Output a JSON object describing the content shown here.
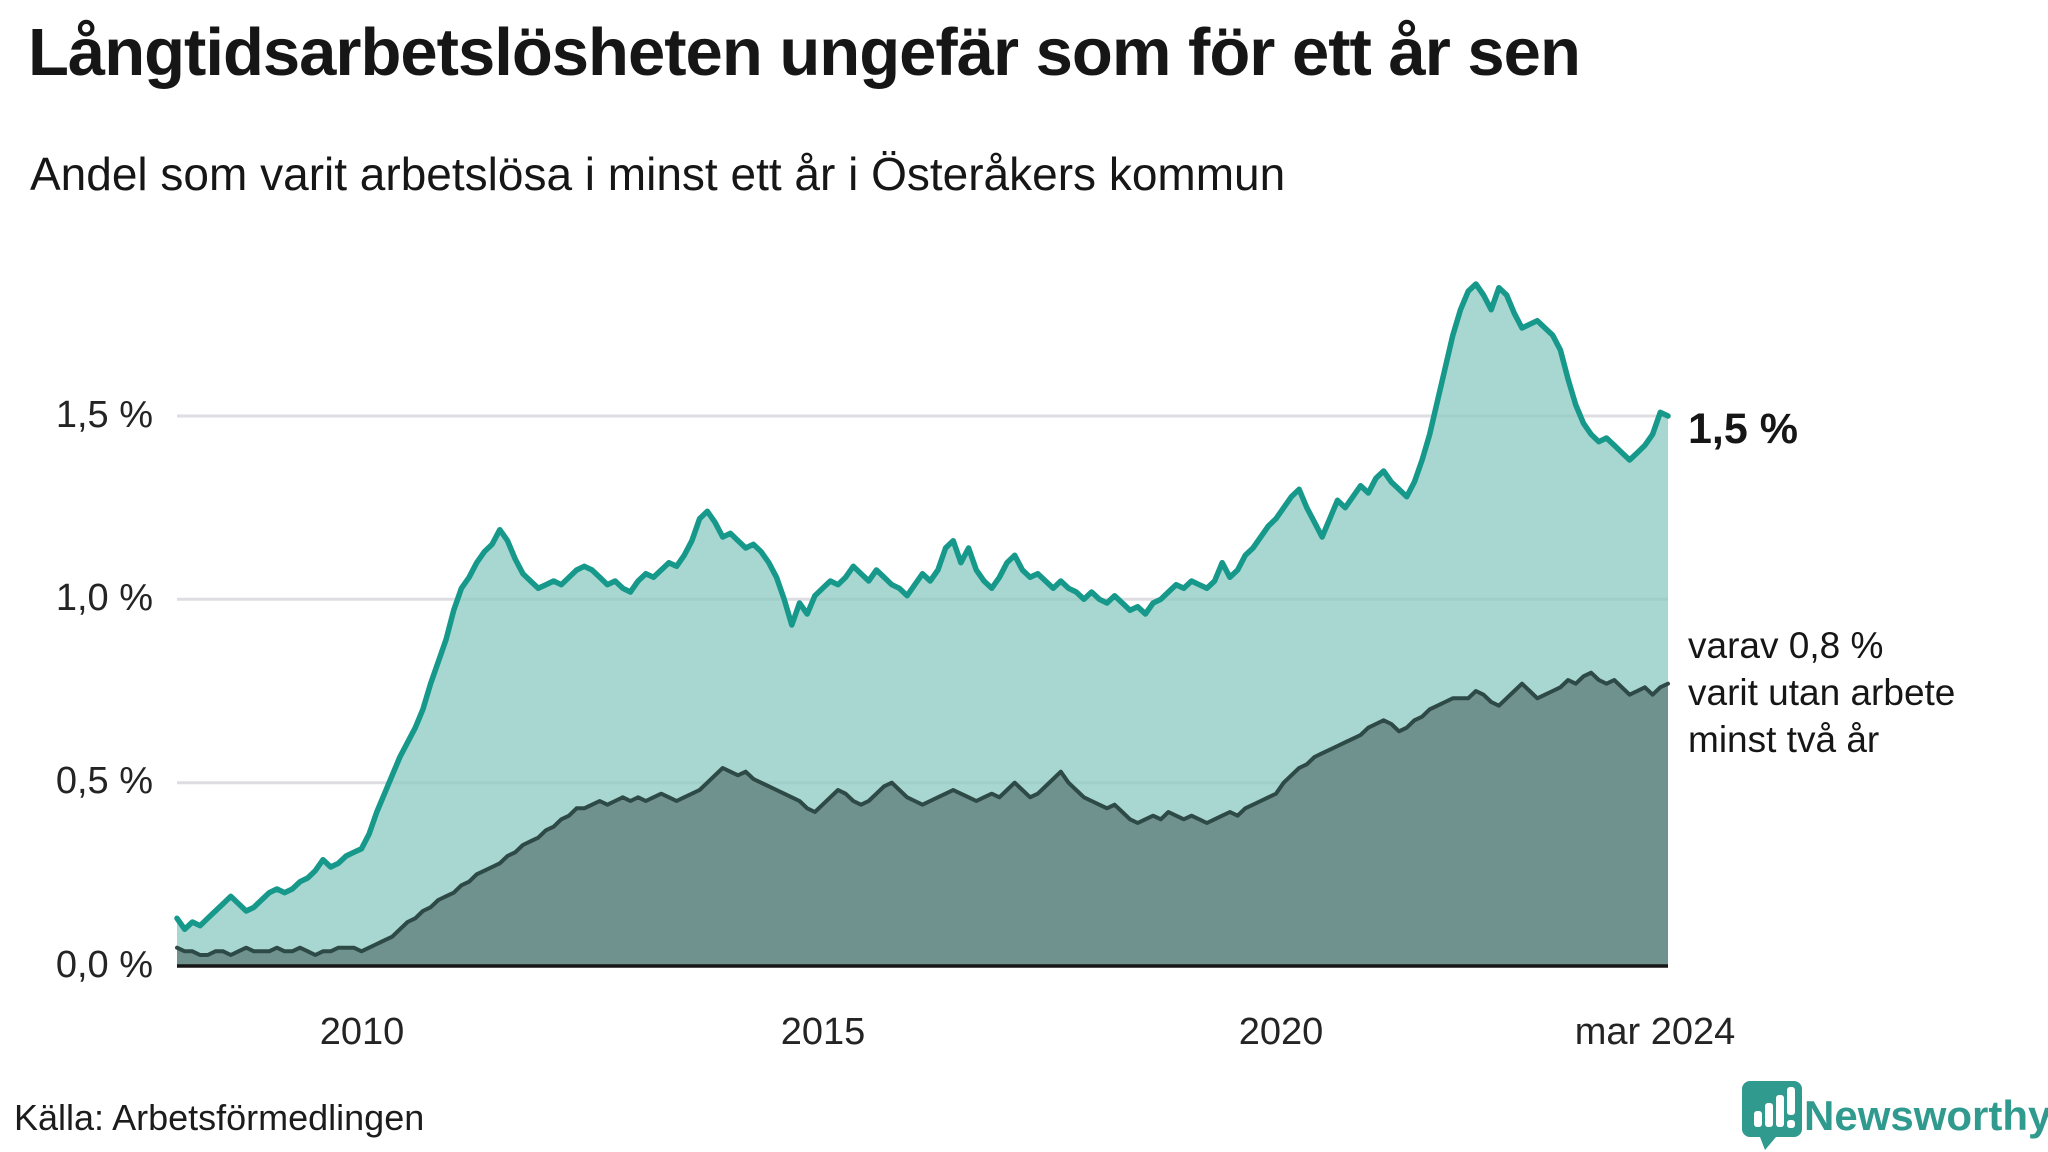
{
  "header": {
    "title": "Långtidsarbetslösheten ungefär som för ett år sen",
    "subtitle": "Andel som varit arbetslösa i minst ett år i Österåkers kommun"
  },
  "y_axis": {
    "ticks": [
      "1,5 %",
      "1,0 %",
      "0,5 %",
      "0,0 %"
    ]
  },
  "x_axis": {
    "ticks": [
      "2010",
      "2015",
      "2020",
      "mar 2024"
    ]
  },
  "annotations": {
    "end_value": "1,5 %",
    "series2_line1": "varav 0,8 %",
    "series2_line2": "varit utan arbete",
    "series2_line3": "minst två år"
  },
  "footer": {
    "source": "Källa: Arbetsförmedlingen",
    "brand": "Newsworthy"
  },
  "colors": {
    "line_upper": "#16988a",
    "fill_upper": "#8bc8c0",
    "line_lower": "#2e4a47",
    "fill_lower": "#70928e",
    "gridline": "#dedee2",
    "axis": "#161616",
    "brand_teal": "#2f9a8d"
  },
  "chart_data": {
    "type": "area",
    "title": "Långtidsarbetslösheten ungefär som för ett år sen",
    "subtitle": "Andel som varit arbetslösa i minst ett år i Österåkers kommun",
    "unit": "%",
    "x_start": "2008-01",
    "x_end": "2024-03",
    "frequency": "monthly",
    "ylim": [
      0,
      2.0
    ],
    "grid_values": [
      1.5,
      1.0,
      0.5
    ],
    "x_tick_labels": [
      "2010",
      "2015",
      "2020",
      "mar 2024"
    ],
    "legend_position": "end-of-line annotations",
    "grid": true,
    "series": [
      {
        "name": "Arbetslösa minst ett år",
        "end_label": "1,5 %",
        "values": [
          0.13,
          0.1,
          0.12,
          0.11,
          0.13,
          0.15,
          0.17,
          0.19,
          0.17,
          0.15,
          0.16,
          0.18,
          0.2,
          0.21,
          0.2,
          0.21,
          0.23,
          0.24,
          0.26,
          0.29,
          0.27,
          0.28,
          0.3,
          0.31,
          0.32,
          0.36,
          0.42,
          0.47,
          0.52,
          0.57,
          0.61,
          0.65,
          0.7,
          0.77,
          0.83,
          0.89,
          0.97,
          1.03,
          1.06,
          1.1,
          1.13,
          1.15,
          1.19,
          1.16,
          1.11,
          1.07,
          1.05,
          1.03,
          1.04,
          1.05,
          1.04,
          1.06,
          1.08,
          1.09,
          1.08,
          1.06,
          1.04,
          1.05,
          1.03,
          1.02,
          1.05,
          1.07,
          1.06,
          1.08,
          1.1,
          1.09,
          1.12,
          1.16,
          1.22,
          1.24,
          1.21,
          1.17,
          1.18,
          1.16,
          1.14,
          1.15,
          1.13,
          1.1,
          1.06,
          1.0,
          0.93,
          0.99,
          0.96,
          1.01,
          1.03,
          1.05,
          1.04,
          1.06,
          1.09,
          1.07,
          1.05,
          1.08,
          1.06,
          1.04,
          1.03,
          1.01,
          1.04,
          1.07,
          1.05,
          1.08,
          1.14,
          1.16,
          1.1,
          1.14,
          1.08,
          1.05,
          1.03,
          1.06,
          1.1,
          1.12,
          1.08,
          1.06,
          1.07,
          1.05,
          1.03,
          1.05,
          1.03,
          1.02,
          1.0,
          1.02,
          1.0,
          0.99,
          1.01,
          0.99,
          0.97,
          0.98,
          0.96,
          0.99,
          1.0,
          1.02,
          1.04,
          1.03,
          1.05,
          1.04,
          1.03,
          1.05,
          1.1,
          1.06,
          1.08,
          1.12,
          1.14,
          1.17,
          1.2,
          1.22,
          1.25,
          1.28,
          1.3,
          1.25,
          1.21,
          1.17,
          1.22,
          1.27,
          1.25,
          1.28,
          1.31,
          1.29,
          1.33,
          1.35,
          1.32,
          1.3,
          1.28,
          1.32,
          1.38,
          1.45,
          1.54,
          1.63,
          1.72,
          1.79,
          1.84,
          1.86,
          1.83,
          1.79,
          1.85,
          1.83,
          1.78,
          1.74,
          1.75,
          1.76,
          1.74,
          1.72,
          1.68,
          1.6,
          1.53,
          1.48,
          1.45,
          1.43,
          1.44,
          1.42,
          1.4,
          1.38,
          1.4,
          1.42,
          1.45,
          1.51,
          1.5
        ]
      },
      {
        "name": "varav utan arbete minst två år",
        "end_label": "varav 0,8 % varit utan arbete minst två år",
        "values": [
          0.05,
          0.04,
          0.04,
          0.03,
          0.03,
          0.04,
          0.04,
          0.03,
          0.04,
          0.05,
          0.04,
          0.04,
          0.04,
          0.05,
          0.04,
          0.04,
          0.05,
          0.04,
          0.03,
          0.04,
          0.04,
          0.05,
          0.05,
          0.05,
          0.04,
          0.05,
          0.06,
          0.07,
          0.08,
          0.1,
          0.12,
          0.13,
          0.15,
          0.16,
          0.18,
          0.19,
          0.2,
          0.22,
          0.23,
          0.25,
          0.26,
          0.27,
          0.28,
          0.3,
          0.31,
          0.33,
          0.34,
          0.35,
          0.37,
          0.38,
          0.4,
          0.41,
          0.43,
          0.43,
          0.44,
          0.45,
          0.44,
          0.45,
          0.46,
          0.45,
          0.46,
          0.45,
          0.46,
          0.47,
          0.46,
          0.45,
          0.46,
          0.47,
          0.48,
          0.5,
          0.52,
          0.54,
          0.53,
          0.52,
          0.53,
          0.51,
          0.5,
          0.49,
          0.48,
          0.47,
          0.46,
          0.45,
          0.43,
          0.42,
          0.44,
          0.46,
          0.48,
          0.47,
          0.45,
          0.44,
          0.45,
          0.47,
          0.49,
          0.5,
          0.48,
          0.46,
          0.45,
          0.44,
          0.45,
          0.46,
          0.47,
          0.48,
          0.47,
          0.46,
          0.45,
          0.46,
          0.47,
          0.46,
          0.48,
          0.5,
          0.48,
          0.46,
          0.47,
          0.49,
          0.51,
          0.53,
          0.5,
          0.48,
          0.46,
          0.45,
          0.44,
          0.43,
          0.44,
          0.42,
          0.4,
          0.39,
          0.4,
          0.41,
          0.4,
          0.42,
          0.41,
          0.4,
          0.41,
          0.4,
          0.39,
          0.4,
          0.41,
          0.42,
          0.41,
          0.43,
          0.44,
          0.45,
          0.46,
          0.47,
          0.5,
          0.52,
          0.54,
          0.55,
          0.57,
          0.58,
          0.59,
          0.6,
          0.61,
          0.62,
          0.63,
          0.65,
          0.66,
          0.67,
          0.66,
          0.64,
          0.65,
          0.67,
          0.68,
          0.7,
          0.71,
          0.72,
          0.73,
          0.73,
          0.73,
          0.75,
          0.74,
          0.72,
          0.71,
          0.73,
          0.75,
          0.77,
          0.75,
          0.73,
          0.74,
          0.75,
          0.76,
          0.78,
          0.77,
          0.79,
          0.8,
          0.78,
          0.77,
          0.78,
          0.76,
          0.74,
          0.75,
          0.76,
          0.74,
          0.76,
          0.77
        ]
      }
    ]
  }
}
